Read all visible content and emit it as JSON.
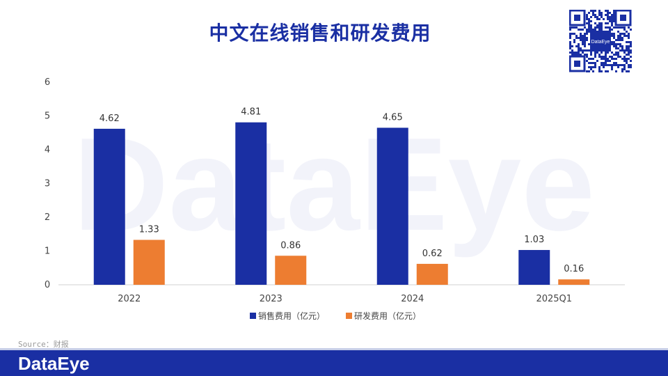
{
  "title": "中文在线销售和研发费用",
  "source": "Source：财报",
  "brand": "DataEye",
  "qr_label": "DataEye",
  "watermark": "DataEye",
  "colors": {
    "sales": "#1a2fa3",
    "rd": "#ed7d31",
    "brand": "#1a2fa3"
  },
  "chart_data": {
    "type": "bar",
    "categories": [
      "2022",
      "2023",
      "2024",
      "2025Q1"
    ],
    "series": [
      {
        "name": "销售费用（亿元）",
        "values": [
          4.62,
          4.81,
          4.65,
          1.03
        ]
      },
      {
        "name": "研发费用（亿元）",
        "values": [
          1.33,
          0.86,
          0.62,
          0.16
        ]
      }
    ],
    "ylim": [
      0,
      6
    ],
    "yticks": [
      "0",
      "1",
      "2",
      "3",
      "4",
      "5",
      "6"
    ],
    "data_labels": [
      [
        "4.62",
        "4.81",
        "4.65",
        "1.03"
      ],
      [
        "1.33",
        "0.86",
        "0.62",
        "0.16"
      ]
    ],
    "legend": "bottom",
    "grid": false
  }
}
